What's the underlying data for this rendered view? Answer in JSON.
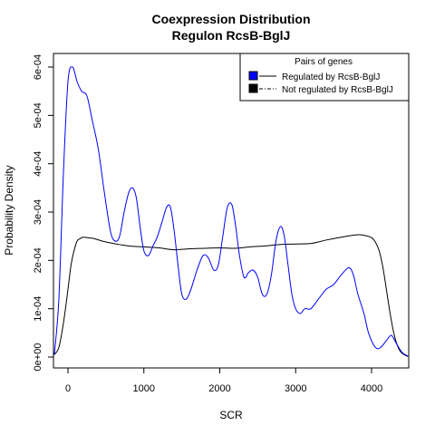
{
  "chart_data": {
    "type": "line",
    "title": "Coexpression Distribution",
    "subtitle": "Regulon RcsB-BglJ",
    "xlabel": "SCR",
    "ylabel": "Probability Density",
    "xlim": [
      -180,
      4480
    ],
    "ylim": [
      0,
      0.00062
    ],
    "xticks": [
      0,
      1000,
      2000,
      3000,
      4000
    ],
    "xtick_labels": [
      "0",
      "1000",
      "2000",
      "3000",
      "4000"
    ],
    "yticks": [
      0,
      0.0001,
      0.0002,
      0.0003,
      0.0004,
      0.0005,
      0.0006
    ],
    "ytick_labels": [
      "0e+00",
      "1e-04",
      "2e-04",
      "3e-04",
      "4e-04",
      "5e-04",
      "6e-04"
    ],
    "grid": false,
    "legend": {
      "title": "Pairs of genes",
      "placement": "top-right",
      "entries": [
        "Regulated by  RcsB-BglJ",
        "Not regulated by  RcsB-BglJ"
      ]
    },
    "series": [
      {
        "name": "Regulated by  RcsB-BglJ",
        "color": "#0000ff",
        "x": [
          -180,
          -120,
          -60,
          0,
          60,
          120,
          180,
          250,
          320,
          400,
          480,
          560,
          620,
          680,
          740,
          800,
          850,
          900,
          950,
          1000,
          1060,
          1120,
          1180,
          1240,
          1300,
          1350,
          1400,
          1450,
          1500,
          1560,
          1620,
          1700,
          1780,
          1850,
          1920,
          1980,
          2040,
          2100,
          2160,
          2210,
          2260,
          2320,
          2380,
          2440,
          2500,
          2560,
          2620,
          2680,
          2740,
          2800,
          2850,
          2900,
          2950,
          3000,
          3060,
          3120,
          3200,
          3300,
          3400,
          3500,
          3600,
          3700,
          3760,
          3820,
          3900,
          3960,
          4050,
          4120,
          4200,
          4260,
          4320,
          4400,
          4480
        ],
        "y": [
          5e-06,
          0.00012,
          0.00038,
          0.00057,
          0.0006,
          0.00057,
          0.00055,
          0.00054,
          0.00049,
          0.00043,
          0.00034,
          0.00026,
          0.00024,
          0.00025,
          0.0003,
          0.00034,
          0.00035,
          0.00033,
          0.00027,
          0.00022,
          0.00021,
          0.00023,
          0.00025,
          0.00028,
          0.00031,
          0.00031,
          0.00026,
          0.00019,
          0.00013,
          0.00012,
          0.00014,
          0.00018,
          0.00021,
          0.000205,
          0.00018,
          0.00019,
          0.00025,
          0.00031,
          0.000315,
          0.00027,
          0.00021,
          0.000165,
          0.000175,
          0.00018,
          0.000165,
          0.00013,
          0.00013,
          0.00017,
          0.00024,
          0.00027,
          0.00025,
          0.00019,
          0.00013,
          0.0001,
          9e-05,
          0.0001,
          0.0001,
          0.00012,
          0.00014,
          0.00015,
          0.00017,
          0.000185,
          0.00017,
          0.00013,
          9e-05,
          5e-05,
          2e-05,
          2e-05,
          3.5e-05,
          4.5e-05,
          3e-05,
          1e-05,
          2e-06
        ]
      },
      {
        "name": "Not regulated by  RcsB-BglJ",
        "color": "#000000",
        "x": [
          -180,
          -120,
          -60,
          0,
          40,
          80,
          120,
          160,
          200,
          260,
          350,
          450,
          600,
          800,
          1000,
          1200,
          1400,
          1600,
          1800,
          2000,
          2200,
          2400,
          2600,
          2800,
          3000,
          3200,
          3400,
          3600,
          3800,
          3900,
          4000,
          4050,
          4100,
          4150,
          4200,
          4250,
          4300,
          4350,
          4400,
          4480
        ],
        "y": [
          5e-06,
          2e-05,
          7e-05,
          0.00014,
          0.00019,
          0.00022,
          0.00024,
          0.000245,
          0.000248,
          0.000247,
          0.000245,
          0.00024,
          0.000235,
          0.00023,
          0.000228,
          0.000226,
          0.000222,
          0.000224,
          0.000225,
          0.000226,
          0.000225,
          0.000228,
          0.00023,
          0.000233,
          0.000234,
          0.000235,
          0.000242,
          0.000248,
          0.000253,
          0.000252,
          0.000247,
          0.000238,
          0.00022,
          0.000185,
          0.000135,
          8.5e-05,
          4.5e-05,
          2e-05,
          8e-06,
          1e-06
        ]
      }
    ]
  }
}
